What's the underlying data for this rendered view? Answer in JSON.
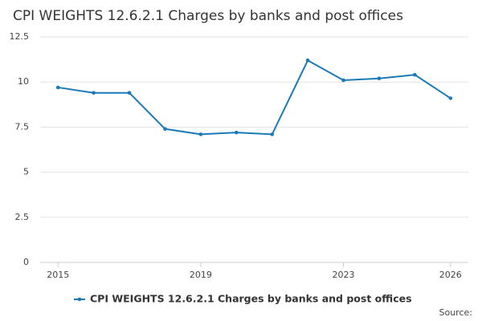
{
  "chart_data": {
    "type": "line",
    "title": "CPI WEIGHTS 12.6.2.1 Charges by banks and post offices",
    "x": [
      2015,
      2016,
      2017,
      2018,
      2019,
      2020,
      2021,
      2022,
      2023,
      2024,
      2025,
      2026
    ],
    "series": [
      {
        "name": "CPI WEIGHTS 12.6.2.1 Charges by banks and post offices",
        "color": "#1a7ab8",
        "values": [
          9.7,
          9.4,
          9.4,
          7.4,
          7.1,
          7.2,
          7.1,
          11.2,
          10.1,
          10.2,
          10.4,
          9.1
        ]
      }
    ],
    "xlim": [
      2014.5,
      2026.5
    ],
    "xticks": [
      2015,
      2019,
      2023,
      2026
    ],
    "ylim": [
      0,
      12.5
    ],
    "yticks": [
      0,
      2.5,
      5,
      7.5,
      10,
      12.5
    ],
    "grid": true,
    "legend": "bottom",
    "source": "Source:"
  }
}
